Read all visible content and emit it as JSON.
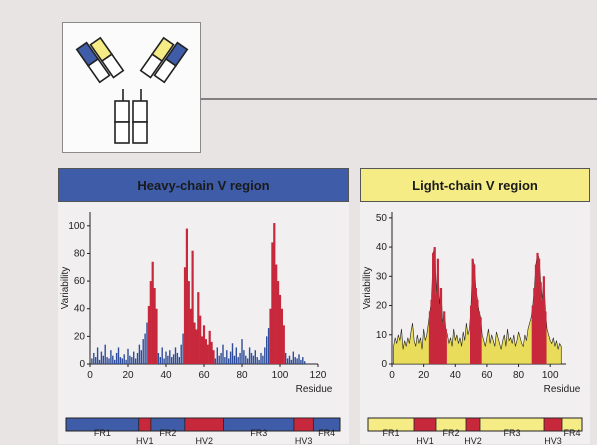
{
  "heavy_panel": {
    "title": "Heavy-chain V region",
    "accent": "#3e5ca8",
    "frame_labels": [
      "FR1",
      "HV1",
      "FR2",
      "HV2",
      "FR3",
      "HV3",
      "FR4"
    ]
  },
  "light_panel": {
    "title": "Light-chain V region",
    "accent": "#f5ec86",
    "frame_labels": [
      "FR1",
      "HV1",
      "FR2",
      "HV2",
      "FR3",
      "HV3",
      "FR4"
    ]
  },
  "chart_data": [
    {
      "type": "bar",
      "title": "Heavy-chain V region",
      "xlabel": "Residue",
      "ylabel": "Variability",
      "xlim": [
        0,
        120
      ],
      "ylim": [
        0,
        110
      ],
      "xticks": [
        0,
        20,
        40,
        60,
        80,
        100,
        120
      ],
      "yticks": [
        0,
        20,
        40,
        60,
        80,
        100
      ],
      "base_color": "#2d4d9a",
      "hv_color": "#c8283c",
      "hv_regions": [
        [
          31,
          35
        ],
        [
          50,
          65
        ],
        [
          95,
          102
        ]
      ],
      "segments": [
        {
          "name": "FR1",
          "start": 1,
          "end": 30
        },
        {
          "name": "HV1",
          "start": 31,
          "end": 35
        },
        {
          "name": "FR2",
          "start": 36,
          "end": 49
        },
        {
          "name": "HV2",
          "start": 50,
          "end": 65
        },
        {
          "name": "FR3",
          "start": 66,
          "end": 94
        },
        {
          "name": "HV3",
          "start": 95,
          "end": 102
        },
        {
          "name": "FR4",
          "start": 103,
          "end": 113
        }
      ],
      "x": [
        1,
        2,
        3,
        4,
        5,
        6,
        7,
        8,
        9,
        10,
        11,
        12,
        13,
        14,
        15,
        16,
        17,
        18,
        19,
        20,
        21,
        22,
        23,
        24,
        25,
        26,
        27,
        28,
        29,
        30,
        31,
        32,
        33,
        34,
        35,
        36,
        37,
        38,
        39,
        40,
        41,
        42,
        43,
        44,
        45,
        46,
        47,
        48,
        49,
        50,
        51,
        52,
        53,
        54,
        55,
        56,
        57,
        58,
        59,
        60,
        61,
        62,
        63,
        64,
        65,
        66,
        67,
        68,
        69,
        70,
        71,
        72,
        73,
        74,
        75,
        76,
        77,
        78,
        79,
        80,
        81,
        82,
        83,
        84,
        85,
        86,
        87,
        88,
        89,
        90,
        91,
        92,
        93,
        94,
        95,
        96,
        97,
        98,
        99,
        100,
        101,
        102,
        103,
        104,
        105,
        106,
        107,
        108,
        109,
        110,
        111,
        112,
        113
      ],
      "values": [
        4,
        8,
        5,
        12,
        3,
        9,
        6,
        14,
        5,
        4,
        10,
        6,
        3,
        8,
        12,
        5,
        4,
        7,
        3,
        11,
        6,
        5,
        9,
        4,
        8,
        14,
        10,
        18,
        22,
        30,
        42,
        60,
        74,
        55,
        40,
        8,
        5,
        12,
        4,
        9,
        6,
        10,
        5,
        7,
        12,
        8,
        5,
        14,
        22,
        70,
        98,
        60,
        40,
        82,
        30,
        25,
        52,
        35,
        20,
        28,
        18,
        14,
        24,
        16,
        10,
        4,
        12,
        6,
        8,
        14,
        5,
        10,
        4,
        9,
        15,
        6,
        12,
        5,
        8,
        18,
        10,
        6,
        4,
        12,
        8,
        6,
        10,
        5,
        3,
        8,
        6,
        12,
        20,
        26,
        40,
        88,
        102,
        72,
        60,
        50,
        40,
        28,
        8,
        4,
        6,
        3,
        9,
        5,
        4,
        7,
        3,
        5,
        2
      ]
    },
    {
      "type": "bar",
      "title": "Light-chain V region",
      "xlabel": "Residue",
      "ylabel": "Variability",
      "xlim": [
        0,
        110
      ],
      "ylim": [
        0,
        52
      ],
      "xticks": [
        0,
        20,
        40,
        60,
        80,
        100
      ],
      "yticks": [
        0,
        10,
        20,
        30,
        40,
        50
      ],
      "base_color": "#e8dc5a",
      "hv_color": "#c8283c",
      "hv_regions": [
        [
          24,
          34
        ],
        [
          50,
          56
        ],
        [
          89,
          97
        ]
      ],
      "segments": [
        {
          "name": "FR1",
          "start": 1,
          "end": 23
        },
        {
          "name": "HV1",
          "start": 24,
          "end": 34
        },
        {
          "name": "FR2",
          "start": 35,
          "end": 49
        },
        {
          "name": "HV2",
          "start": 50,
          "end": 56
        },
        {
          "name": "FR3",
          "start": 57,
          "end": 88
        },
        {
          "name": "HV3",
          "start": 89,
          "end": 97
        },
        {
          "name": "FR4",
          "start": 98,
          "end": 107
        }
      ],
      "x": [
        1,
        2,
        3,
        4,
        5,
        6,
        7,
        8,
        9,
        10,
        11,
        12,
        13,
        14,
        15,
        16,
        17,
        18,
        19,
        20,
        21,
        22,
        23,
        24,
        25,
        26,
        27,
        28,
        29,
        30,
        31,
        32,
        33,
        34,
        35,
        36,
        37,
        38,
        39,
        40,
        41,
        42,
        43,
        44,
        45,
        46,
        47,
        48,
        49,
        50,
        51,
        52,
        53,
        54,
        55,
        56,
        57,
        58,
        59,
        60,
        61,
        62,
        63,
        64,
        65,
        66,
        67,
        68,
        69,
        70,
        71,
        72,
        73,
        74,
        75,
        76,
        77,
        78,
        79,
        80,
        81,
        82,
        83,
        84,
        85,
        86,
        87,
        88,
        89,
        90,
        91,
        92,
        93,
        94,
        95,
        96,
        97,
        98,
        99,
        100,
        101,
        102,
        103,
        104,
        105,
        106,
        107
      ],
      "values": [
        6,
        9,
        7,
        10,
        8,
        12,
        5,
        8,
        6,
        9,
        7,
        11,
        14,
        8,
        6,
        10,
        7,
        9,
        5,
        12,
        8,
        10,
        14,
        18,
        22,
        38,
        40,
        24,
        36,
        20,
        26,
        14,
        18,
        12,
        10,
        7,
        9,
        6,
        12,
        8,
        10,
        7,
        9,
        6,
        11,
        8,
        14,
        10,
        12,
        20,
        36,
        34,
        26,
        22,
        18,
        16,
        10,
        8,
        6,
        9,
        12,
        7,
        10,
        8,
        6,
        11,
        9,
        7,
        5,
        8,
        10,
        6,
        12,
        8,
        9,
        7,
        10,
        6,
        8,
        11,
        9,
        7,
        6,
        10,
        8,
        12,
        14,
        16,
        20,
        26,
        34,
        38,
        36,
        28,
        22,
        30,
        18,
        12,
        10,
        8,
        7,
        9,
        6,
        8,
        5,
        7,
        6
      ]
    }
  ]
}
